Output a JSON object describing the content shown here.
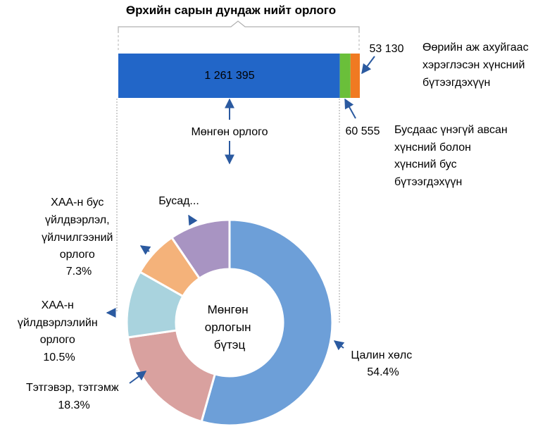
{
  "title": "Өрхийн сарын дундаж нийт орлого",
  "colors": {
    "cash": "#2266c8",
    "in_kind_others": "#6abf3a",
    "own_consumption": "#f07a22",
    "arrow": "#2b5aa0",
    "donut": [
      "#6d9fd8",
      "#d9a19f",
      "#a9d3de",
      "#f4b27a",
      "#a894c2"
    ]
  },
  "chart_data": [
    {
      "type": "bar",
      "orientation": "horizontal-stacked",
      "title": "Өрхийн сарын дундаж нийт орлого",
      "segments": [
        {
          "name": "Мөнгөн орлого",
          "value": 1261395,
          "value_label": "1 261 395"
        },
        {
          "name": "Бусдаас үнэгүй авсан хүнсний болон хүнсний бус бүтээгдэхүүн",
          "value": 60555,
          "value_label": "60 555"
        },
        {
          "name": "Өөрийн аж ахуйгаас хэрэглэсэн хүнсний бүтээгдэхүүн",
          "value": 53130,
          "value_label": "53 130"
        }
      ]
    },
    {
      "type": "pie",
      "donut": true,
      "title": "Мөнгөн орлогын бүтэц",
      "center_label": [
        "Мөнгөн",
        "орлогын",
        "бүтэц"
      ],
      "slices": [
        {
          "name": "Цалин хөлс",
          "value": 54.4,
          "label_lines": [
            "Цалин хөлс"
          ],
          "pct_label": "54.4%"
        },
        {
          "name": "Тэтгэвэр, тэтгэмж",
          "value": 18.3,
          "label_lines": [
            "Тэтгэвэр, тэтгэмж"
          ],
          "pct_label": "18.3%"
        },
        {
          "name": "ХАА-н үйлдвэрлэлийн орлого",
          "value": 10.5,
          "label_lines": [
            "ХАА-н",
            "үйлдвэрлэлийн",
            "орлого"
          ],
          "pct_label": "10.5%"
        },
        {
          "name": "ХАА-н бус үйлдвэрлэл, үйлчилгээний орлого",
          "value": 7.3,
          "label_lines": [
            "ХАА-н бус",
            "үйлдвэрлэл,",
            "үйлчилгээний",
            "орлого"
          ],
          "pct_label": "7.3%"
        },
        {
          "name": "Бусад...",
          "value": 9.5,
          "label_lines": [
            "Бусад..."
          ],
          "pct_label": ""
        }
      ]
    }
  ],
  "labels": {
    "cash_income": "Мөнгөн орлого",
    "own_consumption": [
      "Өөрийн аж ахуйгаас",
      "хэрэглэсэн хүнсний",
      "бүтээгдэхүүн"
    ],
    "in_kind_others": [
      "Бусдаас үнэгүй авсан",
      "хүнсний болон",
      "хүнсний бус",
      "бүтээгдэхүүн"
    ]
  }
}
